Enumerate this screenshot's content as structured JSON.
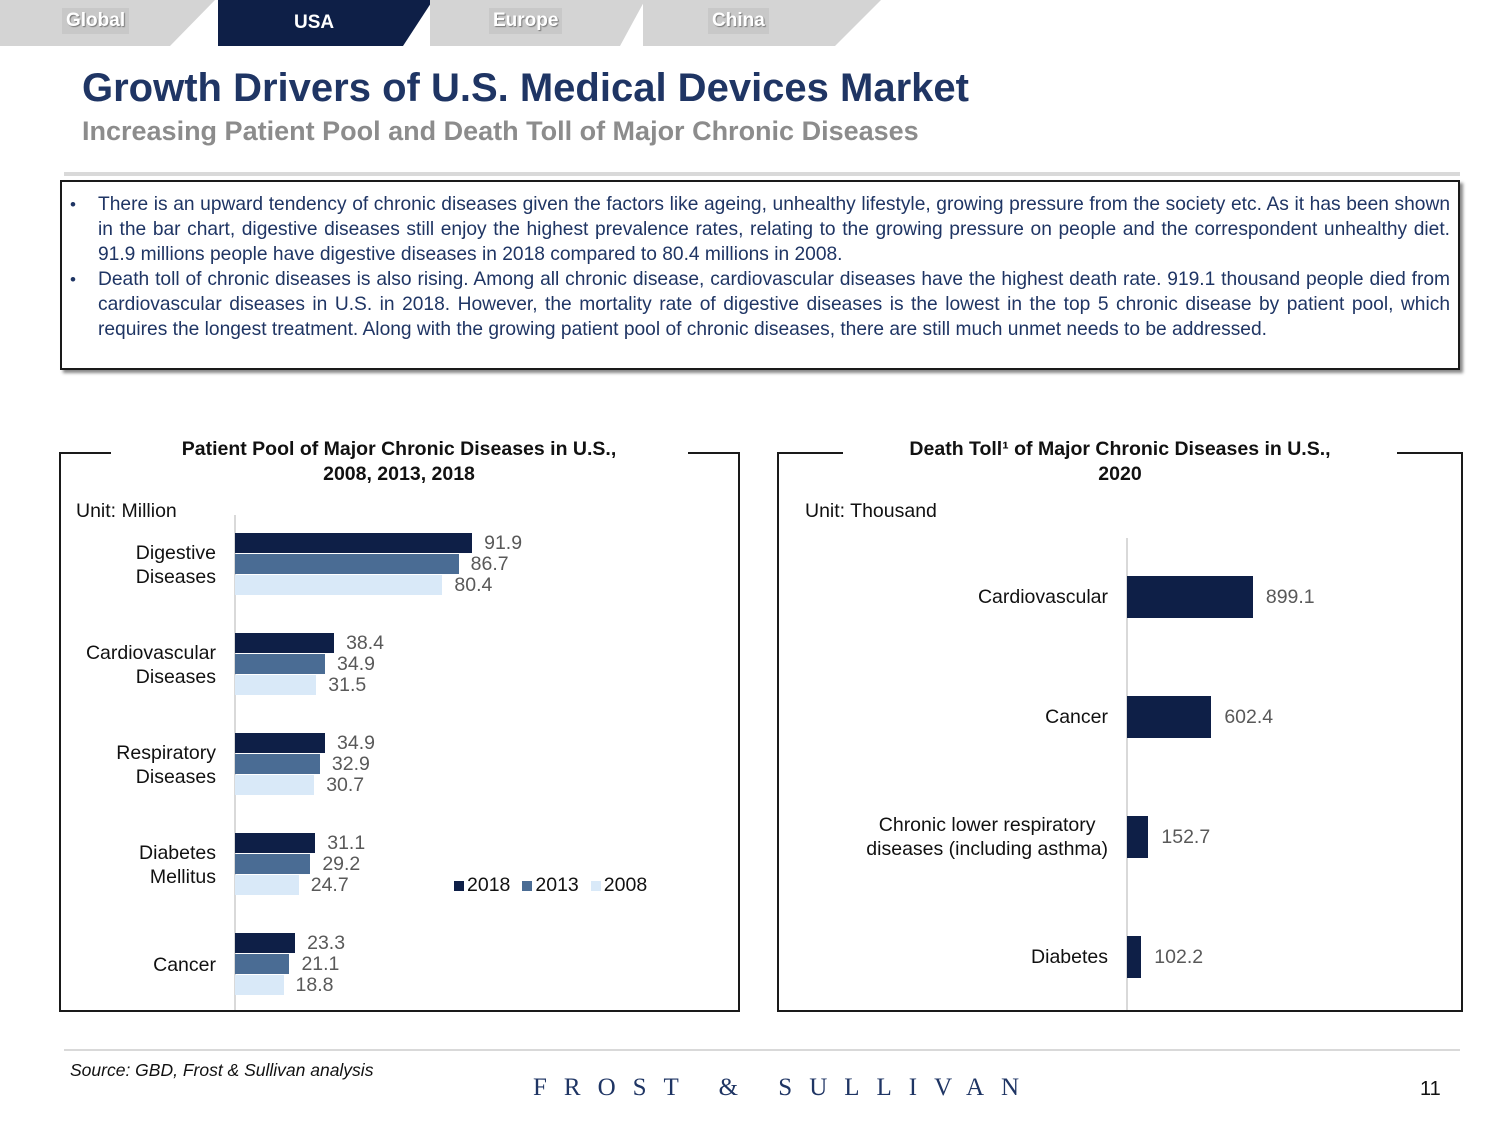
{
  "tabs": [
    {
      "label": "Global",
      "active": false
    },
    {
      "label": "USA",
      "active": true
    },
    {
      "label": "Europe",
      "active": false
    },
    {
      "label": "China",
      "active": false
    }
  ],
  "header": {
    "title": "Growth Drivers of U.S. Medical Devices Market",
    "subtitle": "Increasing Patient Pool and Death Toll of Major Chronic Diseases"
  },
  "bullets": [
    "There is an upward tendency of chronic diseases given the factors like ageing, unhealthy lifestyle, growing pressure from the society etc. As it has been shown in the bar chart, digestive diseases still enjoy the highest prevalence rates, relating to the growing pressure on people and the correspondent unhealthy diet. 91.9 millions people have digestive diseases in 2018 compared  to 80.4 millions in 2008.",
    "Death toll of chronic diseases is also rising. Among all chronic disease, cardiovascular diseases have the highest death rate. 919.1 thousand people died from cardiovascular diseases in U.S. in 2018. However, the mortality rate of digestive diseases is the lowest in the top 5 chronic disease by patient pool, which requires the longest treatment. Along with the growing patient pool of chronic diseases, there are still much unmet needs to be addressed."
  ],
  "chart_data": [
    {
      "type": "bar",
      "orientation": "horizontal",
      "title_line1": "Patient Pool of Major Chronic Diseases in U.S.,",
      "title_line2": "2008, 2013, 2018",
      "unit": "Unit: Million",
      "categories": [
        [
          "Digestive",
          "Diseases"
        ],
        [
          "Cardiovascular",
          "Diseases"
        ],
        [
          "Respiratory",
          "Diseases"
        ],
        [
          "Diabetes",
          "Mellitus"
        ],
        [
          "Cancer"
        ]
      ],
      "series": [
        {
          "name": "2018",
          "color": "#0e1f47",
          "values": [
            91.9,
            38.4,
            34.9,
            31.1,
            23.3
          ]
        },
        {
          "name": "2013",
          "color": "#4a6c94",
          "values": [
            86.7,
            34.9,
            32.9,
            29.2,
            21.1
          ]
        },
        {
          "name": "2008",
          "color": "#d9e9f8",
          "values": [
            80.4,
            31.5,
            30.7,
            24.7,
            18.8
          ]
        }
      ],
      "legend_position": "bottom-right",
      "xlim": [
        0,
        100
      ]
    },
    {
      "type": "bar",
      "orientation": "horizontal",
      "title_line1": "Death Toll¹ of Major Chronic Diseases in U.S.,",
      "title_line2": "2020",
      "unit": "Unit: Thousand",
      "categories": [
        [
          "Cardiovascular"
        ],
        [
          "Cancer"
        ],
        [
          "Chronic lower respiratory",
          "diseases (including asthma)"
        ],
        [
          "Diabetes"
        ]
      ],
      "series": [
        {
          "name": "2020",
          "color": "#0e1f47",
          "values": [
            899.1,
            602.4,
            152.7,
            102.2
          ]
        }
      ],
      "labels": [
        "899.1",
        "602.4",
        "152.7",
        "102.2"
      ],
      "xlim": [
        0,
        1000
      ]
    }
  ],
  "footer": {
    "source": "Source: GBD, Frost & Sullivan analysis",
    "logo": "FROST & SULLIVAN",
    "page_number": "11"
  },
  "colors": {
    "navy": "#1f3564",
    "bar_dark": "#0e1f47",
    "bar_mid": "#4a6c94",
    "bar_light": "#d9e9f8"
  }
}
